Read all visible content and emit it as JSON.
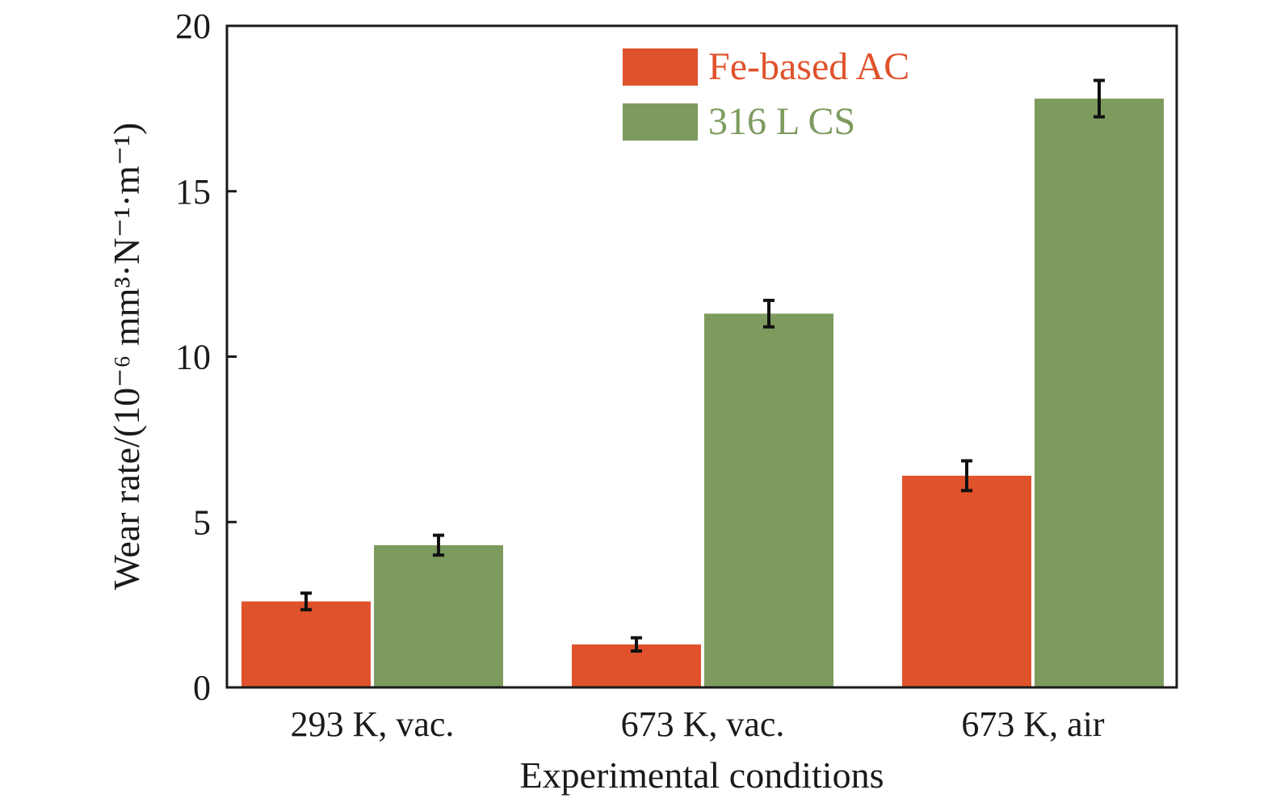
{
  "chart_data": {
    "type": "bar",
    "xlabel": "Experimental conditions",
    "ylabel": "Wear rate/(10⁻⁶ mm³·N⁻¹·m⁻¹)",
    "ylim": [
      0,
      20
    ],
    "yticks": [
      "0",
      "5",
      "10",
      "15",
      "20"
    ],
    "categories": [
      "293 K, vac.",
      "673 K, vac.",
      "673 K, air"
    ],
    "series": [
      {
        "name": "Fe-based AC",
        "color": "#e0522c",
        "values": [
          2.6,
          1.3,
          6.4
        ],
        "errors": [
          0.25,
          0.2,
          0.45
        ]
      },
      {
        "name": "316 L CS",
        "color": "#7d9b5f",
        "values": [
          4.3,
          11.3,
          17.8
        ],
        "errors": [
          0.3,
          0.4,
          0.55
        ]
      }
    ],
    "legend": "top-right",
    "grid": false
  }
}
